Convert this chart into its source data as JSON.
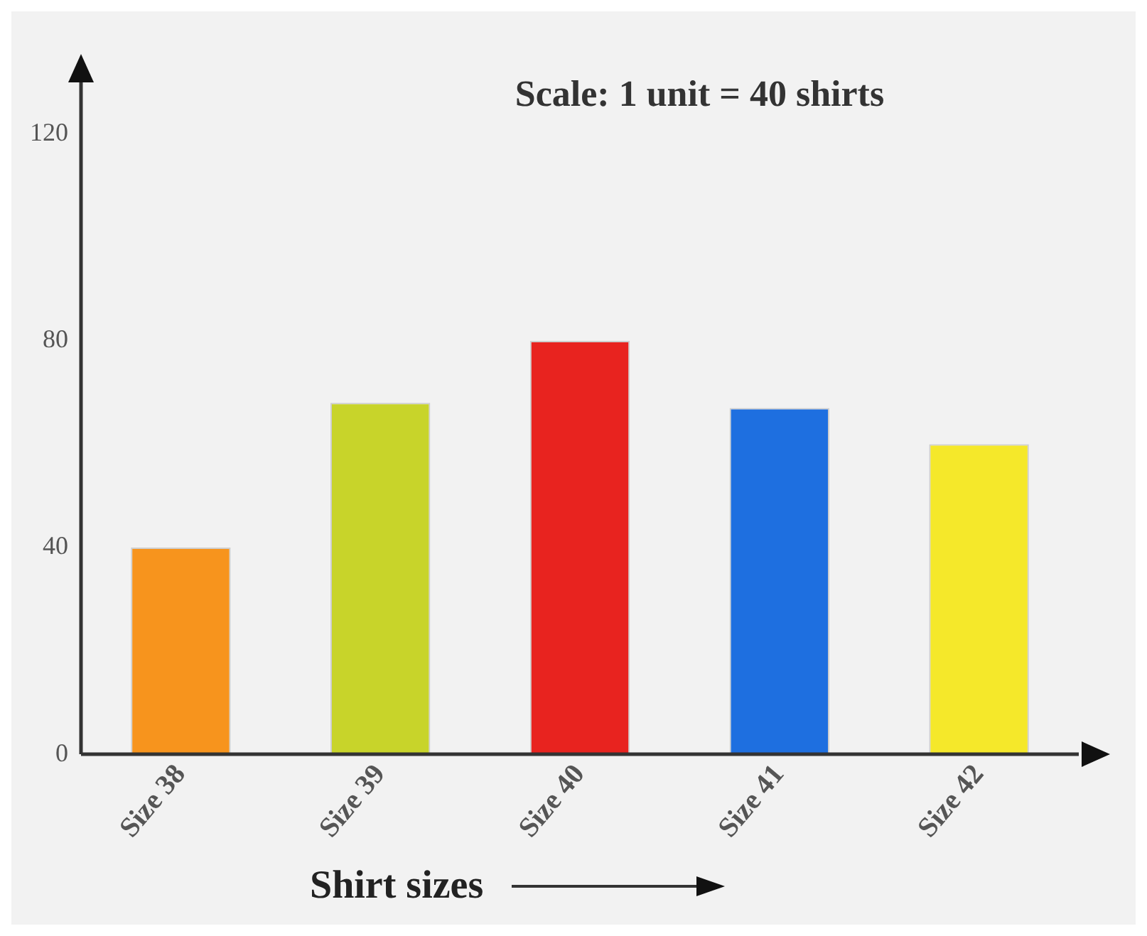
{
  "chart_data": {
    "type": "bar",
    "categories": [
      "Size 38",
      "Size 39",
      "Size 40",
      "Size 41",
      "Size 42"
    ],
    "values": [
      40,
      68,
      80,
      67,
      60
    ],
    "colors": [
      "#f7941d",
      "#c8d42a",
      "#e8231f",
      "#1e6fe0",
      "#f5e82a"
    ],
    "ylim": [
      0,
      130
    ],
    "yticks": [
      0,
      40,
      80,
      120
    ],
    "grid": false,
    "legend": false,
    "xlabel": "Shirt sizes",
    "annotations": [
      "Scale: 1 unit = 40 shirts"
    ]
  }
}
